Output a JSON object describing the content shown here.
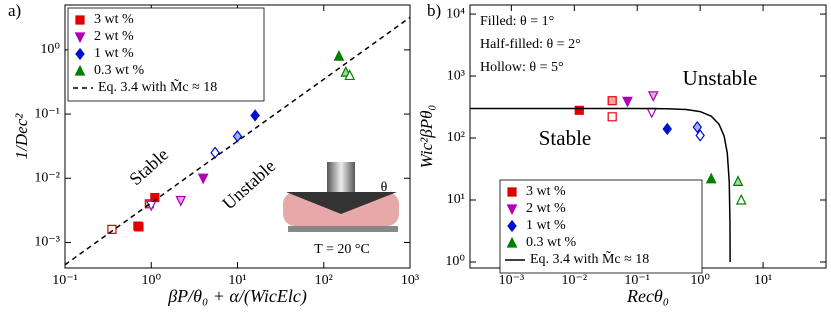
{
  "chart_data": [
    {
      "type": "scatter",
      "label": "a)",
      "log": true,
      "xlabel": "βP/θ₀ + α/(WicElc)",
      "ylabel": "1/Dec²",
      "xlim": [
        0.1,
        1000
      ],
      "ylim": [
        0.0004,
        5
      ],
      "xticks": [
        {
          "value": 0.1,
          "label": "10⁻¹"
        },
        {
          "value": 1,
          "label": "10⁰"
        },
        {
          "value": 10,
          "label": "10¹"
        },
        {
          "value": 100,
          "label": "10²"
        },
        {
          "value": 1000,
          "label": "10³"
        }
      ],
      "yticks": [
        {
          "value": 0.001,
          "label": "10⁻³"
        },
        {
          "value": 0.01,
          "label": "10⁻²"
        },
        {
          "value": 0.1,
          "label": "10⁻¹"
        },
        {
          "value": 1,
          "label": "10⁰"
        }
      ],
      "series": [
        {
          "name": "3 wt %",
          "color": "#e00000",
          "marker": "square",
          "mode": "markers",
          "x": [
            0.35,
            0.7,
            0.72,
            0.95,
            1.1
          ],
          "values": [
            0.0016,
            0.0018,
            0.00175,
            0.004,
            0.005
          ],
          "fills": [
            "hollow",
            "half",
            "filled",
            "half",
            "filled"
          ]
        },
        {
          "name": "2 wt %",
          "color": "#b000b0",
          "marker": "triangle-down",
          "mode": "markers",
          "x": [
            1.0,
            2.2,
            4.0
          ],
          "values": [
            0.0038,
            0.0045,
            0.01
          ],
          "fills": [
            "hollow",
            "half",
            "filled"
          ]
        },
        {
          "name": "1 wt %",
          "color": "#0010d0",
          "marker": "diamond",
          "mode": "markers",
          "x": [
            5.5,
            10,
            16
          ],
          "values": [
            0.025,
            0.045,
            0.095
          ],
          "fills": [
            "hollow",
            "half",
            "filled"
          ]
        },
        {
          "name": "0.3 wt %",
          "color": "#008000",
          "marker": "triangle-up",
          "mode": "markers",
          "x": [
            150,
            180,
            200
          ],
          "values": [
            0.8,
            0.45,
            0.4
          ],
          "fills": [
            "filled",
            "half",
            "hollow"
          ]
        },
        {
          "name": "Eq. 3.4 with M̃c ≈ 18",
          "color": "#000000",
          "mode": "line",
          "dash": true,
          "x": [
            0.1,
            1000
          ],
          "values": [
            0.00045,
            3.2
          ]
        }
      ],
      "annotations": [
        "Stable",
        "Unstable",
        "θ",
        "T = 20 °C"
      ]
    },
    {
      "type": "scatter",
      "label": "b)",
      "log": true,
      "xlabel": "Recθ₀",
      "ylabel": "Wic²βPθ₀",
      "xlim": [
        0.00022,
        100
      ],
      "ylim": [
        0.8,
        14000
      ],
      "xticks": [
        {
          "value": 0.001,
          "label": "10⁻³"
        },
        {
          "value": 0.01,
          "label": "10⁻²"
        },
        {
          "value": 0.1,
          "label": "10⁻¹"
        },
        {
          "value": 1,
          "label": "10⁰"
        },
        {
          "value": 10,
          "label": "10¹"
        }
      ],
      "yticks": [
        {
          "value": 1,
          "label": "10⁰"
        },
        {
          "value": 10,
          "label": "10¹"
        },
        {
          "value": 100,
          "label": "10²"
        },
        {
          "value": 1000,
          "label": "10³"
        },
        {
          "value": 10000,
          "label": "10⁴"
        }
      ],
      "series": [
        {
          "name": "3 wt %",
          "color": "#e00000",
          "marker": "square",
          "mode": "markers",
          "x": [
            0.012,
            0.04,
            0.04
          ],
          "values": [
            280,
            400,
            220
          ],
          "fills": [
            "filled",
            "half",
            "hollow"
          ]
        },
        {
          "name": "2 wt %",
          "color": "#b000b0",
          "marker": "triangle-down",
          "mode": "markers",
          "x": [
            0.07,
            0.18,
            0.17
          ],
          "values": [
            390,
            480,
            260
          ],
          "fills": [
            "filled",
            "half",
            "hollow"
          ]
        },
        {
          "name": "1 wt %",
          "color": "#0010d0",
          "marker": "diamond",
          "mode": "markers",
          "x": [
            0.3,
            0.9,
            1.0
          ],
          "values": [
            140,
            150,
            110
          ],
          "fills": [
            "filled",
            "half",
            "hollow"
          ]
        },
        {
          "name": "0.3 wt %",
          "color": "#008000",
          "marker": "triangle-up",
          "mode": "markers",
          "x": [
            1.5,
            4.0,
            4.5
          ],
          "values": [
            22,
            20,
            10
          ],
          "fills": [
            "filled",
            "half",
            "hollow"
          ]
        },
        {
          "name": "Eq. 3.4 with M̃c ≈ 18",
          "color": "#000000",
          "mode": "line",
          "dash": false,
          "x": [
            0.00022,
            0.01,
            0.1,
            0.3,
            0.6,
            1,
            1.5,
            2,
            2.4,
            2.7,
            2.9,
            2.98,
            2.995
          ],
          "values": [
            300,
            300,
            299.7,
            297,
            288,
            266.7,
            225,
            166.7,
            108,
            57,
            19.7,
            4,
            1.0
          ]
        }
      ],
      "annotations": [
        "Filled: θ = 1°",
        "Half-filled: θ = 2°",
        "Hollow: θ = 5°",
        "Unstable",
        "Stable"
      ]
    }
  ]
}
